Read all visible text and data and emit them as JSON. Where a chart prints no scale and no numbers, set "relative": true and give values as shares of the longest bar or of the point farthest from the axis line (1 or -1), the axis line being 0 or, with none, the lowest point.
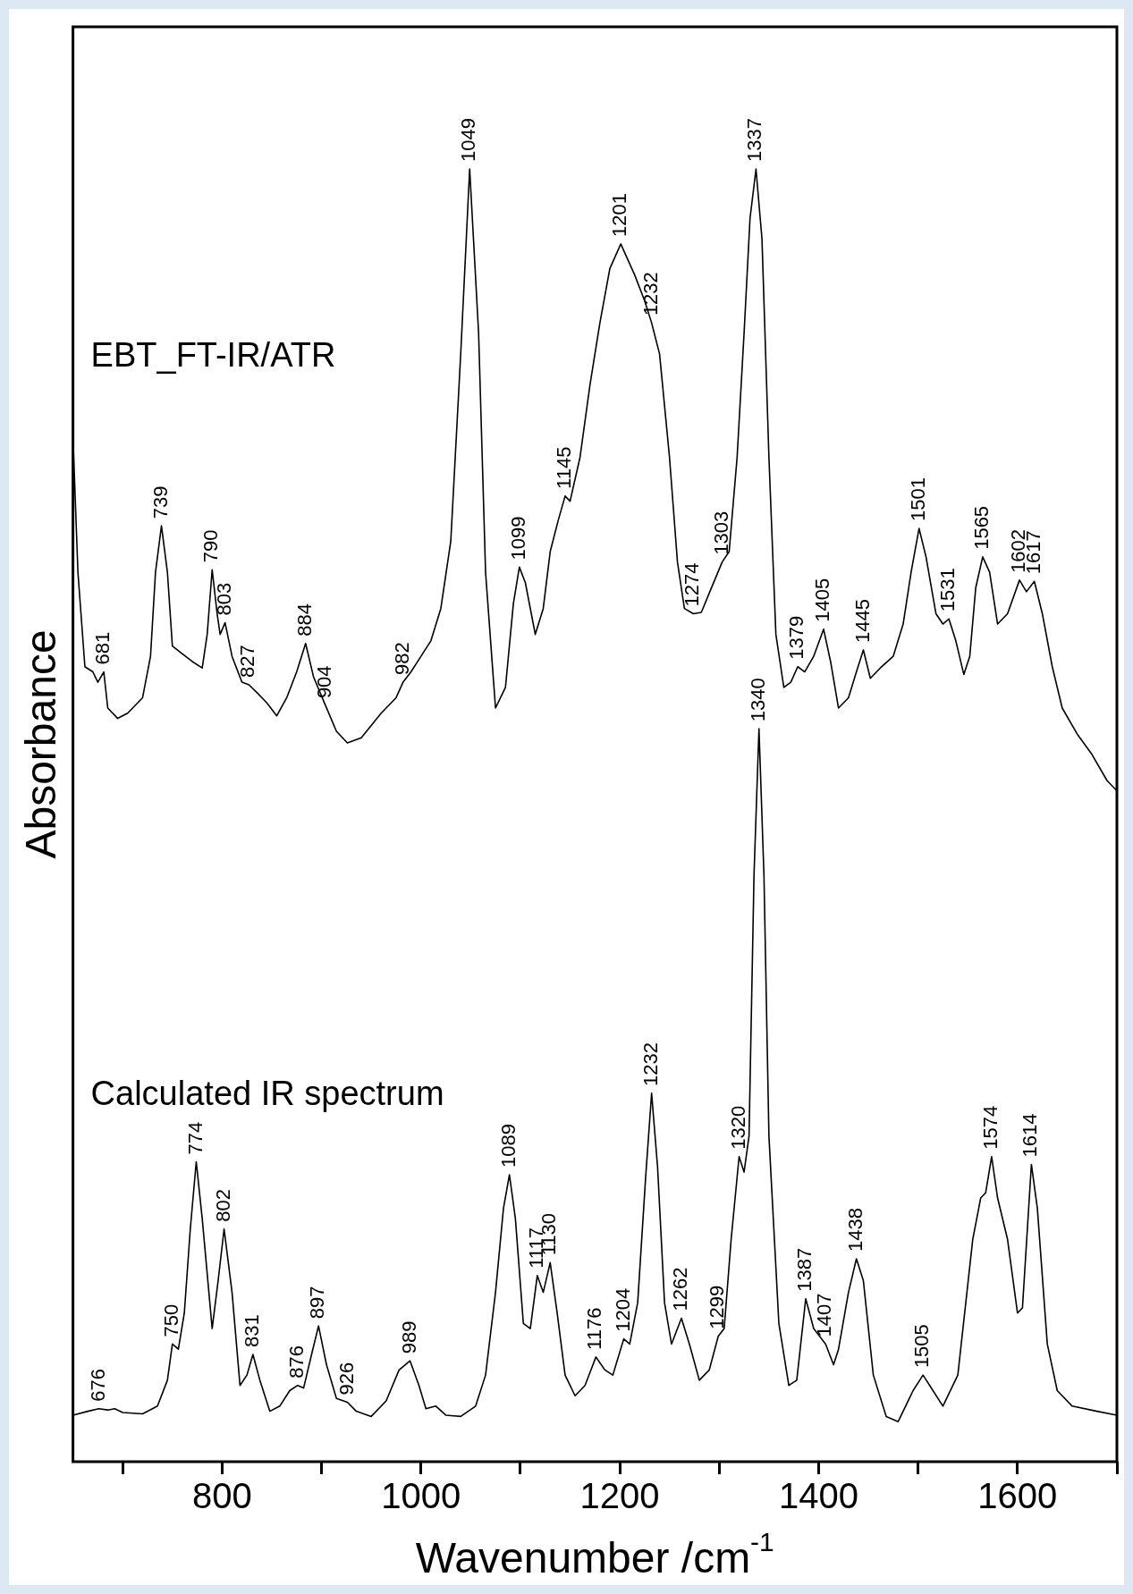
{
  "chart_data": {
    "type": "line",
    "relative": true,
    "xlabel": "Wavenumber /cm$^{-1}$",
    "ylabel": "Absorbance",
    "xlim": [
      650,
      1700
    ],
    "xticks": [
      {
        "value": 700,
        "label": null
      },
      800,
      {
        "value": 900,
        "label": null
      },
      1000,
      {
        "value": 1100,
        "label": null
      },
      1200,
      {
        "value": 1300,
        "label": null
      },
      1400,
      {
        "value": 1500,
        "label": null
      },
      1600,
      {
        "value": 1700,
        "label": null
      }
    ],
    "legend": false,
    "grid": false,
    "series": [
      {
        "name": "EBT_FT-IR/ATR",
        "color": "#000000",
        "x": [
          650,
          655,
          662,
          670,
          675,
          681,
          685,
          695,
          705,
          710,
          720,
          728,
          733,
          739,
          745,
          750,
          760,
          770,
          780,
          785,
          790,
          795,
          798,
          803,
          810,
          820,
          827,
          835,
          845,
          855,
          865,
          875,
          884,
          892,
          904,
          915,
          926,
          940,
          960,
          975,
          982,
          990,
          1000,
          1010,
          1020,
          1030,
          1040,
          1049,
          1058,
          1065,
          1075,
          1085,
          1093,
          1099,
          1105,
          1115,
          1123,
          1130,
          1138,
          1145,
          1150,
          1160,
          1170,
          1180,
          1190,
          1201,
          1215,
          1225,
          1232,
          1240,
          1250,
          1258,
          1265,
          1274,
          1282,
          1290,
          1303,
          1310,
          1318,
          1325,
          1331,
          1337,
          1343,
          1350,
          1357,
          1365,
          1372,
          1379,
          1386,
          1395,
          1405,
          1412,
          1420,
          1430,
          1438,
          1445,
          1452,
          1462,
          1475,
          1485,
          1493,
          1501,
          1508,
          1518,
          1525,
          1531,
          1538,
          1546,
          1552,
          1558,
          1565,
          1572,
          1580,
          1590,
          1602,
          1609,
          1617,
          1625,
          1635,
          1645,
          1660,
          1675,
          1690,
          1700
        ],
        "values": [
          0.793,
          0.688,
          0.615,
          0.611,
          0.603,
          0.611,
          0.583,
          0.575,
          0.579,
          0.583,
          0.591,
          0.623,
          0.688,
          0.724,
          0.688,
          0.631,
          0.625,
          0.619,
          0.614,
          0.64,
          0.69,
          0.656,
          0.64,
          0.649,
          0.623,
          0.603,
          0.601,
          0.595,
          0.587,
          0.577,
          0.591,
          0.611,
          0.633,
          0.607,
          0.585,
          0.565,
          0.556,
          0.56,
          0.579,
          0.591,
          0.603,
          0.611,
          0.623,
          0.635,
          0.66,
          0.712,
          0.857,
          1,
          0.873,
          0.688,
          0.583,
          0.599,
          0.664,
          0.692,
          0.68,
          0.64,
          0.66,
          0.704,
          0.728,
          0.747,
          0.743,
          0.777,
          0.833,
          0.881,
          0.923,
          0.942,
          0.918,
          0.898,
          0.881,
          0.857,
          0.777,
          0.696,
          0.66,
          0.656,
          0.657,
          0.672,
          0.696,
          0.704,
          0.777,
          0.873,
          0.962,
          1,
          0.946,
          0.777,
          0.64,
          0.599,
          0.603,
          0.615,
          0.611,
          0.623,
          0.644,
          0.619,
          0.583,
          0.591,
          0.611,
          0.628,
          0.606,
          0.614,
          0.623,
          0.648,
          0.688,
          0.722,
          0.7,
          0.656,
          0.648,
          0.652,
          0.635,
          0.609,
          0.623,
          0.676,
          0.7,
          0.688,
          0.648,
          0.656,
          0.682,
          0.673,
          0.681,
          0.656,
          0.615,
          0.583,
          0.563,
          0.547,
          0.527,
          0.519
        ]
      },
      {
        "name": "Calculated IR spectrum",
        "color": "#000000",
        "x": [
          650,
          665,
          676,
          685,
          692,
          700,
          720,
          735,
          745,
          750,
          756,
          762,
          768,
          774,
          780,
          790,
          796,
          802,
          810,
          818,
          825,
          831,
          838,
          848,
          858,
          868,
          876,
          882,
          890,
          897,
          905,
          915,
          926,
          935,
          950,
          965,
          978,
          989,
          998,
          1005,
          1015,
          1025,
          1040,
          1055,
          1065,
          1075,
          1083,
          1089,
          1095,
          1103,
          1110,
          1117,
          1123,
          1130,
          1137,
          1145,
          1155,
          1165,
          1176,
          1185,
          1193,
          1204,
          1210,
          1218,
          1226,
          1232,
          1238,
          1245,
          1252,
          1262,
          1270,
          1280,
          1290,
          1299,
          1305,
          1312,
          1320,
          1325,
          1330,
          1335,
          1340,
          1345,
          1350,
          1360,
          1370,
          1378,
          1387,
          1395,
          1407,
          1415,
          1420,
          1430,
          1438,
          1445,
          1455,
          1468,
          1480,
          1495,
          1505,
          1515,
          1525,
          1540,
          1555,
          1563,
          1568,
          1574,
          1580,
          1590,
          1600,
          1605,
          1614,
          1620,
          1630,
          1640,
          1655,
          1680,
          1700
        ],
        "values": [
          0.036,
          0.039,
          0.041,
          0.04,
          0.041,
          0.038,
          0.037,
          0.043,
          0.063,
          0.091,
          0.087,
          0.115,
          0.18,
          0.232,
          0.188,
          0.103,
          0.14,
          0.18,
          0.131,
          0.059,
          0.067,
          0.083,
          0.063,
          0.039,
          0.043,
          0.055,
          0.059,
          0.057,
          0.083,
          0.105,
          0.075,
          0.049,
          0.046,
          0.039,
          0.035,
          0.047,
          0.071,
          0.078,
          0.059,
          0.041,
          0.043,
          0.036,
          0.035,
          0.043,
          0.067,
          0.131,
          0.196,
          0.222,
          0.188,
          0.107,
          0.103,
          0.144,
          0.131,
          0.154,
          0.115,
          0.067,
          0.051,
          0.059,
          0.081,
          0.071,
          0.067,
          0.095,
          0.091,
          0.123,
          0.22,
          0.285,
          0.228,
          0.123,
          0.091,
          0.111,
          0.091,
          0.063,
          0.071,
          0.097,
          0.103,
          0.172,
          0.236,
          0.224,
          0.252,
          0.454,
          0.567,
          0.454,
          0.252,
          0.107,
          0.059,
          0.063,
          0.126,
          0.103,
          0.091,
          0.075,
          0.087,
          0.131,
          0.157,
          0.14,
          0.067,
          0.035,
          0.031,
          0.055,
          0.067,
          0.055,
          0.043,
          0.067,
          0.172,
          0.204,
          0.208,
          0.236,
          0.204,
          0.172,
          0.115,
          0.119,
          0.23,
          0.196,
          0.091,
          0.055,
          0.043,
          0.039,
          0.036
        ]
      }
    ],
    "annotations": [
      {
        "text": "681",
        "x": 681,
        "y": 0.611
      },
      {
        "text": "739",
        "x": 739,
        "y": 0.724
      },
      {
        "text": "790",
        "x": 790,
        "y": 0.69
      },
      {
        "text": "803",
        "x": 803,
        "y": 0.649
      },
      {
        "text": "827",
        "x": 827,
        "y": 0.601
      },
      {
        "text": "884",
        "x": 884,
        "y": 0.633
      },
      {
        "text": "904",
        "x": 904,
        "y": 0.585
      },
      {
        "text": "982",
        "x": 982,
        "y": 0.603
      },
      {
        "text": "1049",
        "x": 1049,
        "y": 1
      },
      {
        "text": "1099",
        "x": 1099,
        "y": 0.692
      },
      {
        "text": "1145",
        "x": 1145,
        "y": 0.747
      },
      {
        "text": "1201",
        "x": 1201,
        "y": 0.942
      },
      {
        "text": "1232",
        "x": 1232,
        "y": 0.881
      },
      {
        "text": "1274",
        "x": 1274,
        "y": 0.656
      },
      {
        "text": "1303",
        "x": 1303,
        "y": 0.696
      },
      {
        "text": "1337",
        "x": 1337,
        "y": 1
      },
      {
        "text": "1379",
        "x": 1379,
        "y": 0.615
      },
      {
        "text": "1405",
        "x": 1405,
        "y": 0.644
      },
      {
        "text": "1445",
        "x": 1445,
        "y": 0.628
      },
      {
        "text": "1501",
        "x": 1501,
        "y": 0.722
      },
      {
        "text": "1531",
        "x": 1531,
        "y": 0.652
      },
      {
        "text": "1565",
        "x": 1565,
        "y": 0.7
      },
      {
        "text": "1602",
        "x": 1602,
        "y": 0.682
      },
      {
        "text": "1617",
        "x": 1617,
        "y": 0.681
      },
      {
        "text": "676",
        "x": 676,
        "y": 0.041
      },
      {
        "text": "750",
        "x": 750,
        "y": 0.091
      },
      {
        "text": "774",
        "x": 774,
        "y": 0.232
      },
      {
        "text": "802",
        "x": 802,
        "y": 0.18
      },
      {
        "text": "831",
        "x": 831,
        "y": 0.083
      },
      {
        "text": "876",
        "x": 876,
        "y": 0.059
      },
      {
        "text": "897",
        "x": 897,
        "y": 0.105
      },
      {
        "text": "926",
        "x": 926,
        "y": 0.046
      },
      {
        "text": "989",
        "x": 989,
        "y": 0.078
      },
      {
        "text": "1089",
        "x": 1089,
        "y": 0.222
      },
      {
        "text": "1117",
        "x": 1117,
        "y": 0.144
      },
      {
        "text": "1130",
        "x": 1130,
        "y": 0.154
      },
      {
        "text": "1176",
        "x": 1176,
        "y": 0.081
      },
      {
        "text": "1204",
        "x": 1204,
        "y": 0.095
      },
      {
        "text": "1232",
        "x": 1232,
        "y": 0.285
      },
      {
        "text": "1262",
        "x": 1262,
        "y": 0.111
      },
      {
        "text": "1299",
        "x": 1299,
        "y": 0.097
      },
      {
        "text": "1320",
        "x": 1320,
        "y": 0.236
      },
      {
        "text": "1340",
        "x": 1340,
        "y": 0.567
      },
      {
        "text": "1387",
        "x": 1387,
        "y": 0.126
      },
      {
        "text": "1407",
        "x": 1407,
        "y": 0.091
      },
      {
        "text": "1438",
        "x": 1438,
        "y": 0.157
      },
      {
        "text": "1505",
        "x": 1505,
        "y": 0.067
      },
      {
        "text": "1574",
        "x": 1574,
        "y": 0.236
      },
      {
        "text": "1614",
        "x": 1614,
        "y": 0.23
      }
    ]
  }
}
